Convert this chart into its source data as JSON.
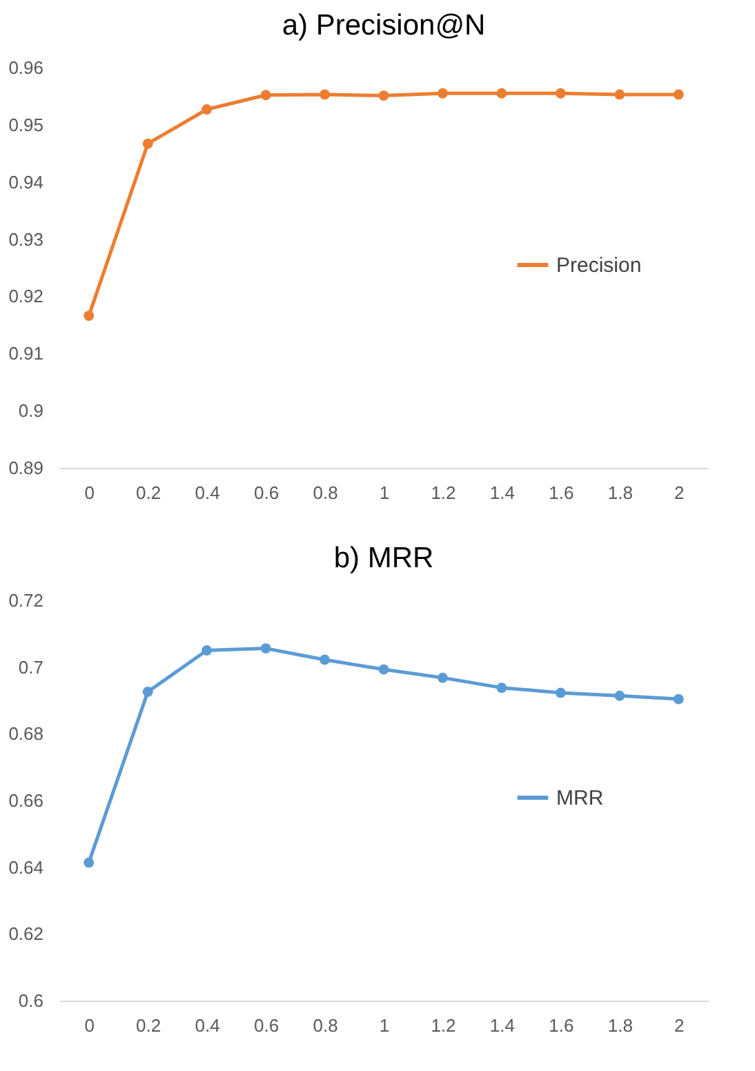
{
  "chart_data": [
    {
      "type": "line",
      "title": "a)    Precision@N",
      "categories": [
        "0",
        "0.2",
        "0.4",
        "0.6",
        "0.8",
        "1",
        "1.2",
        "1.4",
        "1.6",
        "1.8",
        "2"
      ],
      "series": [
        {
          "name": "Precision",
          "color": "#ed7d31",
          "values": [
            0.9166,
            0.9467,
            0.9527,
            0.9552,
            0.9553,
            0.9551,
            0.9555,
            0.9555,
            0.9555,
            0.9553,
            0.9553
          ]
        }
      ],
      "ylim": [
        0.89,
        0.96
      ],
      "yticks": [
        0.89,
        {
          "value": 0.9,
          "label": "0.9"
        },
        0.91,
        0.92,
        0.93,
        0.94,
        0.95,
        0.96
      ],
      "legend": "right",
      "marker": "circle"
    },
    {
      "type": "line",
      "title": "b)    MRR",
      "categories": [
        "0",
        "0.2",
        "0.4",
        "0.6",
        "0.8",
        "1",
        "1.2",
        "1.4",
        "1.6",
        "1.8",
        "2"
      ],
      "series": [
        {
          "name": "MRR",
          "color": "#5b9bd5",
          "values": [
            0.6414,
            0.6926,
            0.705,
            0.7056,
            0.7022,
            0.6993,
            0.6968,
            0.6938,
            0.6923,
            0.6914,
            0.6904
          ]
        }
      ],
      "ylim": [
        0.6,
        0.72
      ],
      "yticks": [
        {
          "value": 0.6,
          "label": "0.6"
        },
        0.62,
        0.64,
        0.66,
        0.68,
        {
          "value": 0.7,
          "label": "0.7"
        },
        0.72
      ],
      "legend": "right",
      "marker": "circle"
    }
  ]
}
